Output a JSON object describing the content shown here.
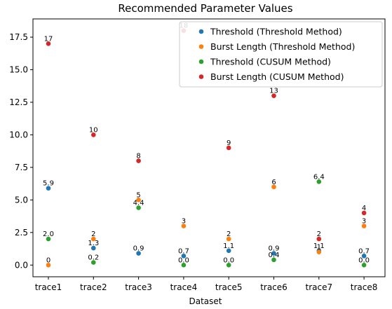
{
  "chart_data": {
    "type": "scatter",
    "title": "Recommended Parameter Values",
    "xlabel": "Dataset",
    "ylabel": "",
    "categories": [
      "trace1",
      "trace2",
      "trace3",
      "trace4",
      "trace5",
      "trace6",
      "trace7",
      "trace8"
    ],
    "ylim": [
      -0.9,
      18.9
    ],
    "yticks": [
      0.0,
      2.5,
      5.0,
      7.5,
      10.0,
      12.5,
      15.0,
      17.5
    ],
    "ytick_labels": [
      "0.0",
      "2.5",
      "5.0",
      "7.5",
      "10.0",
      "12.5",
      "15.0",
      "17.5"
    ],
    "grid": false,
    "legend_position": "top-right",
    "series": [
      {
        "name": "Threshold (Threshold Method)",
        "color": "#1f77b4",
        "values": [
          5.9,
          1.3,
          0.9,
          0.7,
          1.1,
          0.9,
          1.1,
          0.7
        ],
        "labels": [
          "5.9",
          "1.3",
          "0.9",
          "0.7",
          "1.1",
          "0.9",
          "1.1",
          "0.7"
        ]
      },
      {
        "name": "Burst Length (Threshold Method)",
        "color": "#ff7f0e",
        "values": [
          0,
          2,
          5,
          3,
          2,
          6,
          1,
          3
        ],
        "labels": [
          "0",
          "2",
          "5",
          "3",
          "2",
          "6",
          "1",
          "3"
        ]
      },
      {
        "name": "Threshold  (CUSUM Method)",
        "color": "#2ca02c",
        "values": [
          2.0,
          0.2,
          4.4,
          0.0,
          0.0,
          0.4,
          6.4,
          0.0
        ],
        "labels": [
          "2.0",
          "0.2",
          "4.4",
          "0.0",
          "0.0",
          "0.4",
          "6.4",
          "0.0"
        ]
      },
      {
        "name": "Burst Length (CUSUM Method)",
        "color": "#d62728",
        "values": [
          17,
          10,
          8,
          18,
          9,
          13,
          2,
          4
        ],
        "labels": [
          "17",
          "10",
          "8",
          "18",
          "9",
          "13",
          "2",
          "4"
        ]
      }
    ]
  }
}
